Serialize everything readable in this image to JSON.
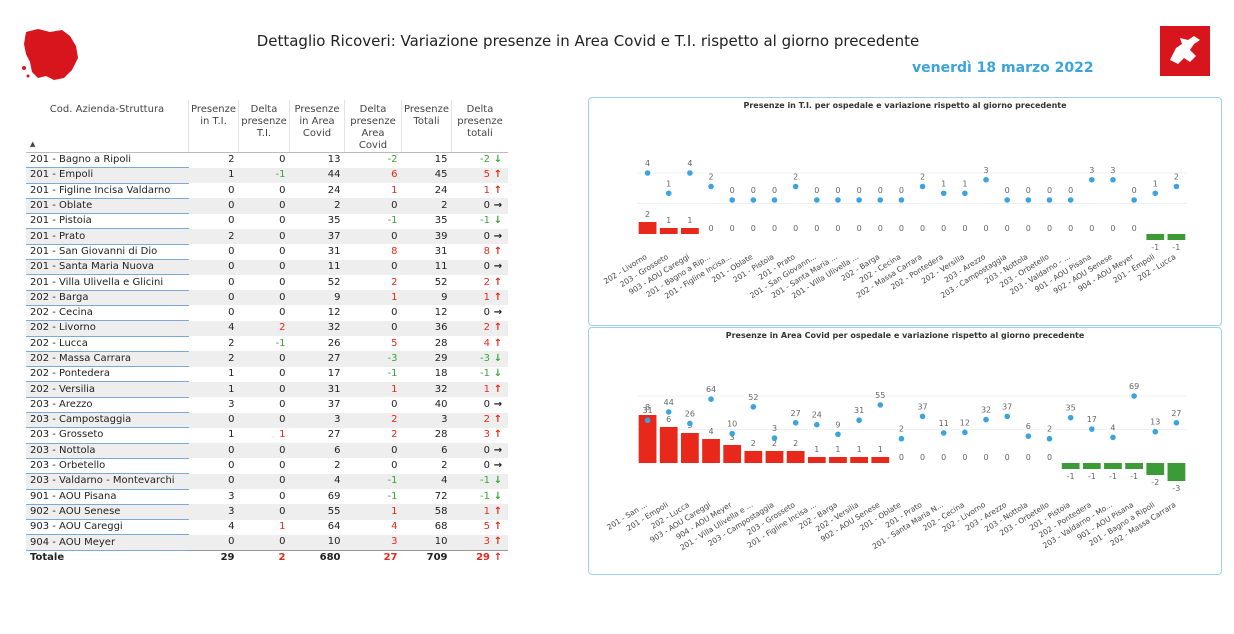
{
  "header": {
    "title": "Dettaglio Ricoveri: Variazione presenze in Area Covid e T.I. rispetto al giorno precedente",
    "date": "venerdì 18 marzo 2022"
  },
  "colors": {
    "red": "#e8281b",
    "green": "#3ba537",
    "dot": "#3aa4dc",
    "bar_red": "#e8281b",
    "bar_green": "#3c9a37"
  },
  "table": {
    "headers": [
      "Cod. Azienda-Struttura",
      "Presenze in T.I.",
      "Delta presenze T.I.",
      "Presenze in Area Covid",
      "Delta presenze Area Covid",
      "Presenze Totali",
      "Delta presenze totali"
    ],
    "sort_icon": "sort-ascending-icon",
    "rows": [
      {
        "name": "201 - Bagno a Ripoli",
        "ti": "2",
        "dti": "0",
        "ac": "13",
        "dac": "-2",
        "tot": "15",
        "dtot": "-2",
        "dir": "down"
      },
      {
        "name": "201 - Empoli",
        "ti": "1",
        "dti": "-1",
        "ac": "44",
        "dac": "6",
        "tot": "45",
        "dtot": "5",
        "dir": "up"
      },
      {
        "name": "201 - Figline Incisa Valdarno",
        "ti": "0",
        "dti": "0",
        "ac": "24",
        "dac": "1",
        "tot": "24",
        "dtot": "1",
        "dir": "up"
      },
      {
        "name": "201 - Oblate",
        "ti": "0",
        "dti": "0",
        "ac": "2",
        "dac": "0",
        "tot": "2",
        "dtot": "0",
        "dir": "right"
      },
      {
        "name": "201 - Pistoia",
        "ti": "0",
        "dti": "0",
        "ac": "35",
        "dac": "-1",
        "tot": "35",
        "dtot": "-1",
        "dir": "down"
      },
      {
        "name": "201 - Prato",
        "ti": "2",
        "dti": "0",
        "ac": "37",
        "dac": "0",
        "tot": "39",
        "dtot": "0",
        "dir": "right"
      },
      {
        "name": "201 - San Giovanni di Dio",
        "ti": "0",
        "dti": "0",
        "ac": "31",
        "dac": "8",
        "tot": "31",
        "dtot": "8",
        "dir": "up"
      },
      {
        "name": "201 - Santa Maria Nuova",
        "ti": "0",
        "dti": "0",
        "ac": "11",
        "dac": "0",
        "tot": "11",
        "dtot": "0",
        "dir": "right"
      },
      {
        "name": "201 - Villa Ulivella e Glicini",
        "ti": "0",
        "dti": "0",
        "ac": "52",
        "dac": "2",
        "tot": "52",
        "dtot": "2",
        "dir": "up"
      },
      {
        "name": "202 - Barga",
        "ti": "0",
        "dti": "0",
        "ac": "9",
        "dac": "1",
        "tot": "9",
        "dtot": "1",
        "dir": "up"
      },
      {
        "name": "202 - Cecina",
        "ti": "0",
        "dti": "0",
        "ac": "12",
        "dac": "0",
        "tot": "12",
        "dtot": "0",
        "dir": "right"
      },
      {
        "name": "202 - Livorno",
        "ti": "4",
        "dti": "2",
        "ac": "32",
        "dac": "0",
        "tot": "36",
        "dtot": "2",
        "dir": "up"
      },
      {
        "name": "202 - Lucca",
        "ti": "2",
        "dti": "-1",
        "ac": "26",
        "dac": "5",
        "tot": "28",
        "dtot": "4",
        "dir": "up"
      },
      {
        "name": "202 - Massa Carrara",
        "ti": "2",
        "dti": "0",
        "ac": "27",
        "dac": "-3",
        "tot": "29",
        "dtot": "-3",
        "dir": "down"
      },
      {
        "name": "202 - Pontedera",
        "ti": "1",
        "dti": "0",
        "ac": "17",
        "dac": "-1",
        "tot": "18",
        "dtot": "-1",
        "dir": "down"
      },
      {
        "name": "202 - Versilia",
        "ti": "1",
        "dti": "0",
        "ac": "31",
        "dac": "1",
        "tot": "32",
        "dtot": "1",
        "dir": "up"
      },
      {
        "name": "203 - Arezzo",
        "ti": "3",
        "dti": "0",
        "ac": "37",
        "dac": "0",
        "tot": "40",
        "dtot": "0",
        "dir": "right"
      },
      {
        "name": "203 - Campostaggia",
        "ti": "0",
        "dti": "0",
        "ac": "3",
        "dac": "2",
        "tot": "3",
        "dtot": "2",
        "dir": "up"
      },
      {
        "name": "203 - Grosseto",
        "ti": "1",
        "dti": "1",
        "ac": "27",
        "dac": "2",
        "tot": "28",
        "dtot": "3",
        "dir": "up"
      },
      {
        "name": "203 - Nottola",
        "ti": "0",
        "dti": "0",
        "ac": "6",
        "dac": "0",
        "tot": "6",
        "dtot": "0",
        "dir": "right"
      },
      {
        "name": "203 - Orbetello",
        "ti": "0",
        "dti": "0",
        "ac": "2",
        "dac": "0",
        "tot": "2",
        "dtot": "0",
        "dir": "right"
      },
      {
        "name": "203 - Valdarno - Montevarchi",
        "ti": "0",
        "dti": "0",
        "ac": "4",
        "dac": "-1",
        "tot": "4",
        "dtot": "-1",
        "dir": "down"
      },
      {
        "name": "901 - AOU Pisana",
        "ti": "3",
        "dti": "0",
        "ac": "69",
        "dac": "-1",
        "tot": "72",
        "dtot": "-1",
        "dir": "down"
      },
      {
        "name": "902 - AOU Senese",
        "ti": "3",
        "dti": "0",
        "ac": "55",
        "dac": "1",
        "tot": "58",
        "dtot": "1",
        "dir": "up"
      },
      {
        "name": "903 - AOU Careggi",
        "ti": "4",
        "dti": "1",
        "ac": "64",
        "dac": "4",
        "tot": "68",
        "dtot": "5",
        "dir": "up"
      },
      {
        "name": "904 - AOU Meyer",
        "ti": "0",
        "dti": "0",
        "ac": "10",
        "dac": "3",
        "tot": "10",
        "dtot": "3",
        "dir": "up"
      }
    ],
    "total": {
      "name": "Totale",
      "ti": "29",
      "dti": "2",
      "ac": "680",
      "dac": "27",
      "tot": "709",
      "dtot": "29",
      "dir": "up"
    }
  },
  "chart_data": [
    {
      "type": "bar",
      "title": "Presenze in T.I. per ospedale e variazione rispetto al giorno precedente",
      "categories": [
        "202 - Livorno",
        "203 - Grosseto",
        "903 - AOU Careggi",
        "201 - Bagno a Rip...",
        "201 - Figline Incisa...",
        "201 - Oblate",
        "201 - Pistoia",
        "201 - Prato",
        "201 - San Giovann...",
        "201 - Santa Maria ...",
        "201 - Villa Ulivella ...",
        "202 - Barga",
        "202 - Cecina",
        "202 - Massa Carrara",
        "202 - Pontedera",
        "202 - Versilia",
        "203 - Arezzo",
        "203 - Campostaggia",
        "203 - Nottola",
        "203 - Orbetello",
        "203 - Valdarno - ...",
        "901 - AOU Pisana",
        "902 - AOU Senese",
        "904 - AOU Meyer",
        "201 - Empoli",
        "202 - Lucca"
      ],
      "series": [
        {
          "kind": "bar",
          "values": [
            2,
            1,
            1,
            0,
            0,
            0,
            0,
            0,
            0,
            0,
            0,
            0,
            0,
            0,
            0,
            0,
            0,
            0,
            0,
            0,
            0,
            0,
            0,
            0,
            -1,
            -1
          ]
        },
        {
          "kind": "dot",
          "values": [
            4,
            1,
            4,
            2,
            0,
            0,
            0,
            2,
            0,
            0,
            0,
            0,
            0,
            2,
            1,
            1,
            3,
            0,
            0,
            0,
            0,
            3,
            3,
            0,
            1,
            2
          ]
        }
      ],
      "ylim": [
        -2,
        5
      ]
    },
    {
      "type": "bar",
      "title": "Presenze in Area Covid per ospedale e variazione rispetto al giorno precedente",
      "categories": [
        "201 - San ...",
        "201 - Empoli",
        "202 - Lucca",
        "903 - AOU Careggi",
        "904 - AOU Meyer",
        "201 - Villa Ulivella e ...",
        "203 - Campostaggia",
        "203 - Grosseto",
        "201 - Figline Incisa ...",
        "202 - Barga",
        "202 - Versilia",
        "902 - AOU Senese",
        "201 - Oblate",
        "201 - Prato",
        "201 - Santa Maria N...",
        "202 - Cecina",
        "202 - Livorno",
        "203 - Arezzo",
        "203 - Nottola",
        "203 - Orbetello",
        "201 - Pistoia",
        "202 - Pontedera",
        "203 - Valdarno - Mo...",
        "901 - AOU Pisana",
        "201 - Bagno a Ripoli",
        "202 - Massa Carrara"
      ],
      "series": [
        {
          "kind": "bar",
          "values": [
            8,
            6,
            5,
            4,
            3,
            2,
            2,
            2,
            1,
            1,
            1,
            1,
            0,
            0,
            0,
            0,
            0,
            0,
            0,
            0,
            -1,
            -1,
            -1,
            -1,
            -2,
            -3
          ]
        },
        {
          "kind": "dot",
          "values": [
            31,
            44,
            26,
            64,
            10,
            52,
            3,
            27,
            24,
            9,
            31,
            55,
            2,
            37,
            11,
            12,
            32,
            37,
            6,
            2,
            35,
            17,
            4,
            69,
            13,
            27
          ]
        }
      ],
      "ylim": [
        -5,
        80
      ]
    }
  ]
}
